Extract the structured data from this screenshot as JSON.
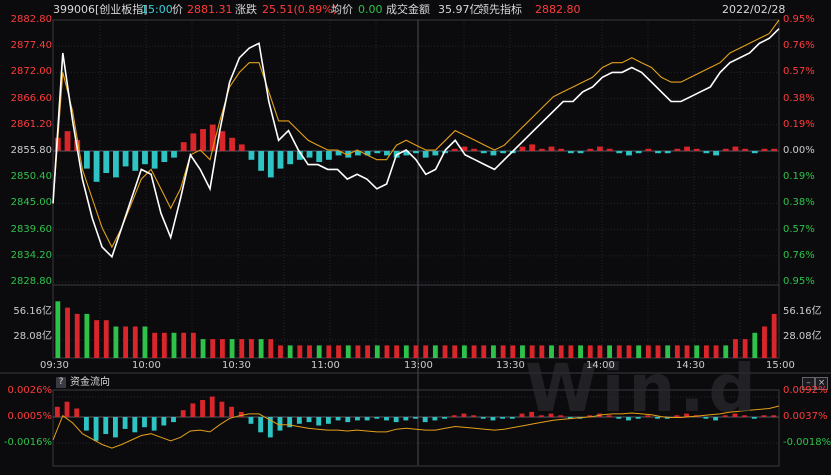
{
  "header": {
    "code": "399006[创业板指]",
    "time": "15:00",
    "price_label": "价",
    "price": "2881.31",
    "change_label": "涨跌",
    "change": "25.51(0.89%)",
    "avg_label": "均价",
    "avg": "0.00",
    "turnover_label": "成交金额",
    "turnover": "35.97亿",
    "lead_label": "领先指标",
    "lead": "2882.80",
    "date": "2022/02/28"
  },
  "main_chart": {
    "y_left": [
      "2882.80",
      "2877.40",
      "2872.00",
      "2866.60",
      "2861.20",
      "2855.80",
      "2850.40",
      "2845.00",
      "2839.60",
      "2834.20",
      "2828.80"
    ],
    "y_right": [
      "0.95%",
      "0.76%",
      "0.57%",
      "0.38%",
      "0.19%",
      "0.00%",
      "0.19%",
      "0.38%",
      "0.57%",
      "0.76%",
      "0.95%"
    ],
    "vol_left": [
      "56.16亿",
      "28.08亿"
    ],
    "vol_right": [
      "56.16亿",
      "28.08亿"
    ],
    "x_labels": [
      "09:30",
      "10:00",
      "10:30",
      "11:00",
      "13:00",
      "13:30",
      "14:00",
      "14:30",
      "15:00"
    ]
  },
  "sub_chart": {
    "title": "资金流向",
    "help_icon": "?",
    "y_left": [
      "0.0026%",
      "0.0005%",
      "-0.0016%"
    ],
    "y_right": [
      "0.0092%",
      "0.0037%",
      "-0.0018%"
    ],
    "btn_minimize": "–",
    "btn_close": "×"
  },
  "watermark": "Win.d",
  "chart_data": {
    "type": "line",
    "ylim": [
      2828.8,
      2882.8
    ],
    "base": 2855.8,
    "series": [
      {
        "values": [
          2845,
          2876,
          2862,
          2850,
          2842,
          2836,
          2834,
          2840,
          2846,
          2852,
          2851,
          2843,
          2838,
          2846,
          2855,
          2852,
          2848,
          2860,
          2870,
          2875,
          2877,
          2878,
          2866,
          2858,
          2860,
          2856,
          2853,
          2853,
          2852,
          2852,
          2850,
          2851,
          2850,
          2848,
          2849,
          2855,
          2856,
          2854,
          2851,
          2852,
          2856,
          2858,
          2855,
          2854,
          2853,
          2852,
          2854,
          2856,
          2858,
          2860,
          2862,
          2864,
          2866,
          2866,
          2868,
          2869,
          2871,
          2872,
          2872,
          2873,
          2872,
          2870,
          2868,
          2866,
          2866,
          2867,
          2868,
          2869,
          2872,
          2874,
          2875,
          2876,
          2878,
          2879,
          2881
        ]
      },
      {
        "values": [
          2845,
          2872,
          2864,
          2852,
          2846,
          2840,
          2836,
          2840,
          2845,
          2850,
          2852,
          2848,
          2844,
          2848,
          2855,
          2856,
          2854,
          2862,
          2869,
          2872,
          2874,
          2874,
          2868,
          2862,
          2862,
          2860,
          2858,
          2857,
          2856,
          2856,
          2855,
          2856,
          2855,
          2854,
          2854,
          2857,
          2858,
          2857,
          2856,
          2856,
          2858,
          2860,
          2859,
          2858,
          2857,
          2856,
          2857,
          2859,
          2861,
          2863,
          2865,
          2867,
          2868,
          2869,
          2870,
          2871,
          2873,
          2874,
          2874,
          2875,
          2874,
          2873,
          2871,
          2870,
          2870,
          2871,
          2872,
          2873,
          2874,
          2876,
          2877,
          2878,
          2879,
          2880,
          2882.8
        ]
      }
    ],
    "bars": [
      6,
      9,
      5,
      -8,
      -14,
      -10,
      -12,
      -7,
      -9,
      -6,
      -8,
      -5,
      -3,
      4,
      8,
      10,
      12,
      9,
      6,
      3,
      -4,
      -9,
      -12,
      -8,
      -6,
      -4,
      -3,
      -5,
      -4,
      -2,
      -3,
      -2,
      -2,
      -1,
      -2,
      -3,
      -2,
      -1,
      -3,
      -2,
      -1,
      1,
      2,
      1,
      -1,
      -2,
      -1,
      -1,
      2,
      3,
      1,
      2,
      1,
      -1,
      -1,
      1,
      2,
      1,
      -1,
      -2,
      -1,
      1,
      -1,
      -1,
      1,
      2,
      1,
      -1,
      -2,
      1,
      2,
      1,
      -1,
      1,
      1
    ],
    "volume": [
      9,
      8,
      7,
      7,
      6,
      6,
      5,
      5,
      5,
      5,
      4,
      4,
      4,
      4,
      4,
      3,
      3,
      3,
      3,
      3,
      3,
      3,
      3,
      2,
      2,
      2,
      2,
      2,
      2,
      2,
      2,
      2,
      2,
      2,
      2,
      2,
      2,
      2,
      2,
      2,
      2,
      2,
      2,
      2,
      2,
      2,
      2,
      2,
      2,
      2,
      2,
      2,
      2,
      2,
      2,
      2,
      2,
      2,
      2,
      2,
      2,
      2,
      2,
      2,
      2,
      2,
      2,
      2,
      2,
      2,
      3,
      3,
      4,
      5,
      7
    ]
  }
}
